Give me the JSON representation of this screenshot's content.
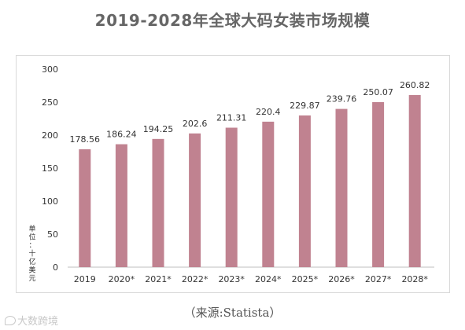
{
  "title": "2019-2028年全球大码女装市场规模",
  "source": "（来源:Statista）",
  "watermark": {
    "text": "大数跨境",
    "icon": "chat-bubble-icon"
  },
  "colors": {
    "bar": "#c08290",
    "axis": "#bfbfbf",
    "text": "#333333"
  },
  "chart_data": {
    "type": "bar",
    "title": "2019-2028年全球大码女装市场规模",
    "ylabel": "单位：十亿美元",
    "xlabel": "",
    "categories": [
      "2019",
      "2020*",
      "2021*",
      "2022*",
      "2023*",
      "2024*",
      "2025*",
      "2026*",
      "2027*",
      "2028*"
    ],
    "values": [
      178.56,
      186.24,
      194.25,
      202.6,
      211.31,
      220.4,
      229.87,
      239.76,
      250.07,
      260.82
    ],
    "value_labels": [
      "178.56",
      "186.24",
      "194.25",
      "202.6",
      "211.31",
      "220.4",
      "229.87",
      "239.76",
      "250.07",
      "260.82"
    ],
    "ylim": [
      0,
      300
    ],
    "yticks": [
      0,
      50,
      100,
      150,
      200,
      250,
      300
    ],
    "grid": false,
    "legend": "none"
  }
}
